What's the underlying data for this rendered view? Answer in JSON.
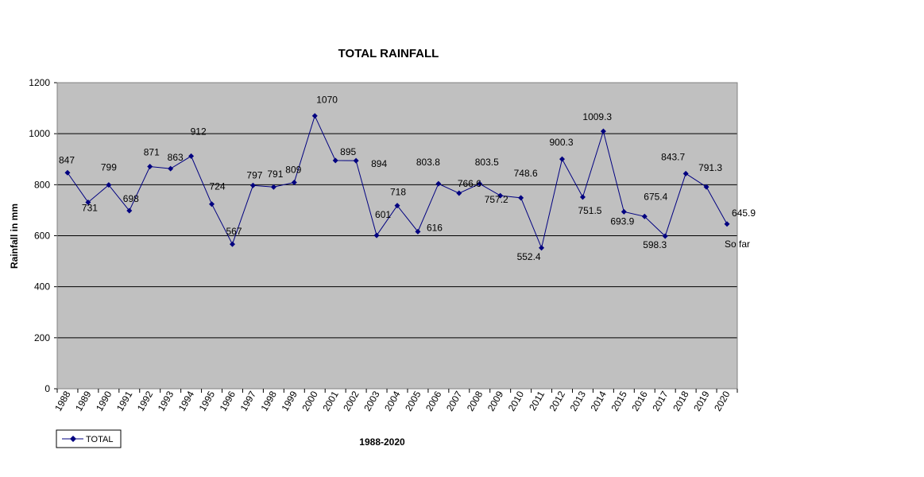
{
  "colors": {
    "plot_bg": "#c0c0c0",
    "series": "#000080",
    "grid": "#000000"
  },
  "chart_data": {
    "type": "line",
    "title": "TOTAL RAINFALL",
    "xlabel": "1988-2020",
    "ylabel": "Rainfall in mm",
    "ylim": [
      0,
      1200
    ],
    "yticks": [
      0,
      200,
      400,
      600,
      800,
      1000,
      1200
    ],
    "grid": true,
    "legend_position": "bottom-left",
    "categories": [
      "1988",
      "1989",
      "1990",
      "1991",
      "1992",
      "1993",
      "1994",
      "1995",
      "1996",
      "1997",
      "1998",
      "1999",
      "2000",
      "2001",
      "2002",
      "2003",
      "2004",
      "2005",
      "2006",
      "2007",
      "2008",
      "2009",
      "2010",
      "2011",
      "2012",
      "2013",
      "2014",
      "2015",
      "2016",
      "2017",
      "2018",
      "2019",
      "2020"
    ],
    "series": [
      {
        "name": "TOTAL",
        "values": [
          847,
          731,
          799,
          698,
          871,
          863,
          912,
          724,
          567,
          797,
          791,
          809,
          1070,
          895,
          894,
          601,
          718,
          616,
          803.8,
          766.6,
          803.5,
          757.2,
          748.6,
          552.4,
          900.3,
          751.5,
          1009.3,
          693.9,
          675.4,
          598.3,
          843.7,
          791.3,
          645.9
        ],
        "labels": [
          "847",
          "731",
          "799",
          "698",
          "871",
          "863",
          "912",
          "724",
          "567",
          "797",
          "791",
          "809",
          "1070",
          "895",
          "894",
          "601",
          "718",
          "616",
          "803.8",
          "766.6",
          "803.5",
          "757.2",
          "748.6",
          "552.4",
          "900.3",
          "751.5",
          "1009.3",
          "693.9",
          "675.4",
          "598.3",
          "843.7",
          "791.3",
          "645.9"
        ]
      }
    ],
    "annotations": [
      {
        "category": "2020",
        "text": "So far"
      }
    ]
  }
}
